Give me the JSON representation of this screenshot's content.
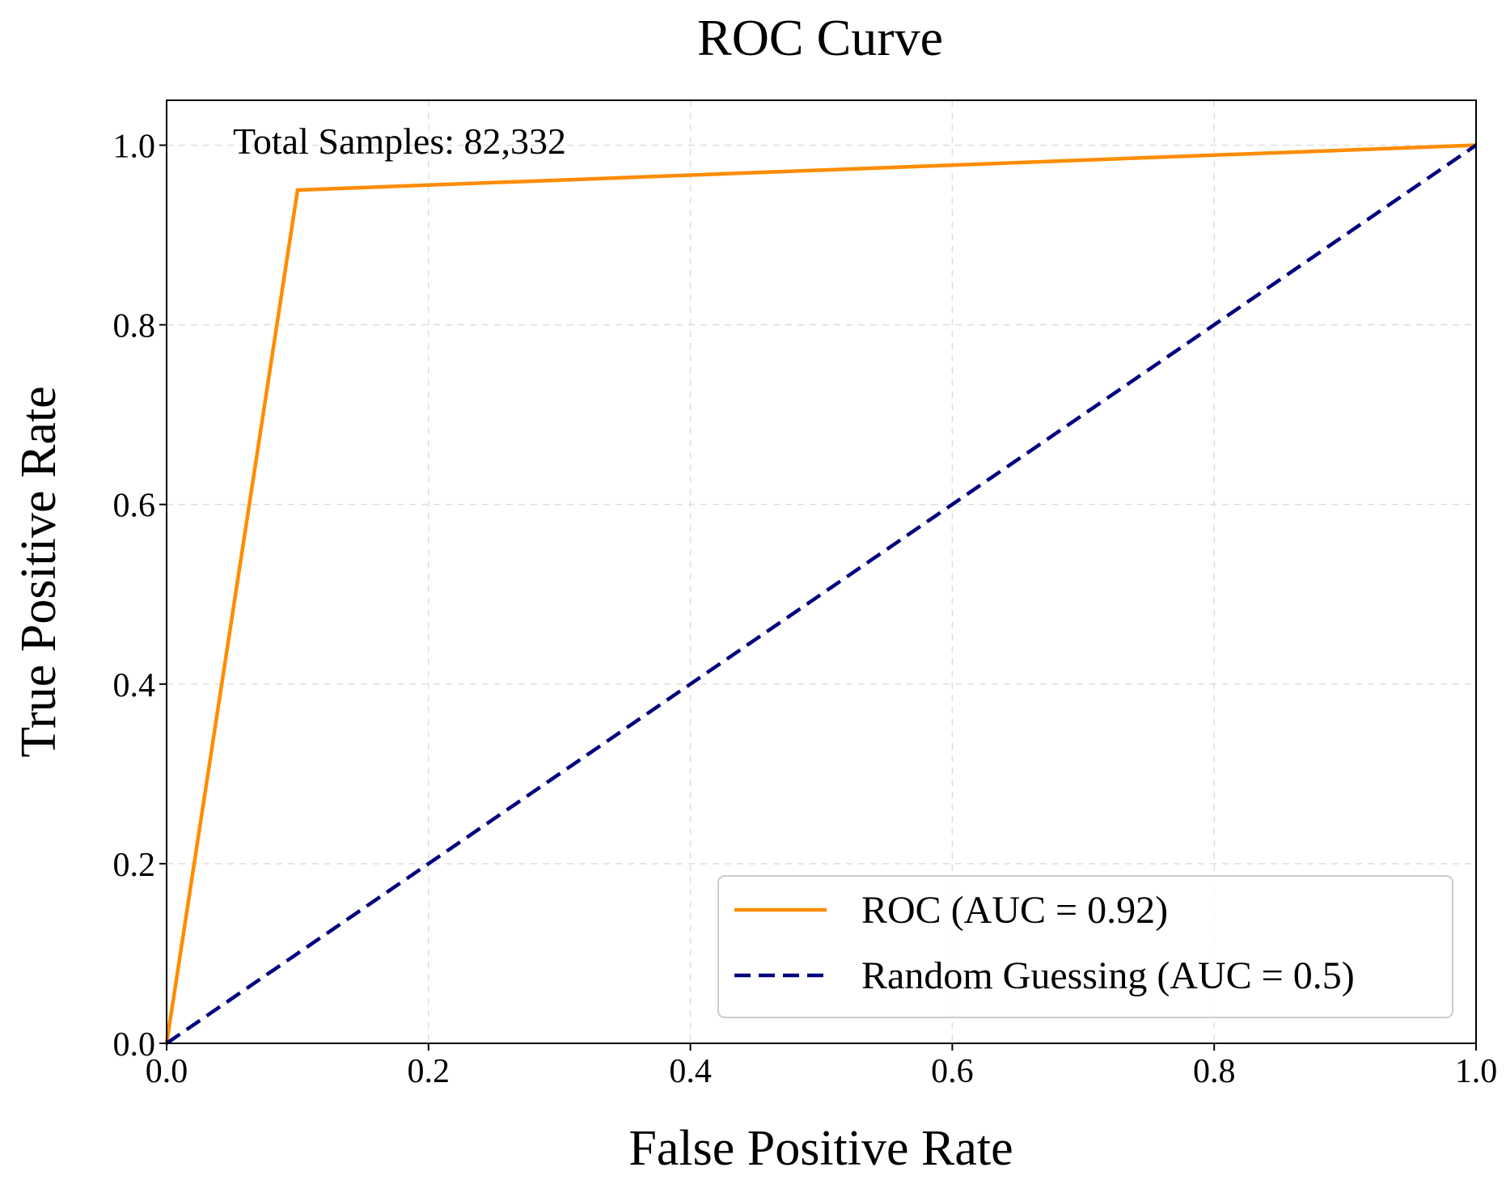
{
  "chart_data": {
    "type": "line",
    "title": "ROC Curve",
    "xlabel": "False Positive Rate",
    "ylabel": "True Positive Rate",
    "xlim": [
      0.0,
      1.0
    ],
    "ylim": [
      0.0,
      1.05
    ],
    "xticks": [
      0.0,
      0.2,
      0.4,
      0.6,
      0.8,
      1.0
    ],
    "xtick_labels": [
      "0.0",
      "0.2",
      "0.4",
      "0.6",
      "0.8",
      "1.0"
    ],
    "yticks": [
      0.0,
      0.2,
      0.4,
      0.6,
      0.8,
      1.0
    ],
    "ytick_labels": [
      "0.0",
      "0.2",
      "0.4",
      "0.6",
      "0.8",
      "1.0"
    ],
    "grid": true,
    "legend_position": "lower-right",
    "annotation": "Total Samples: 82,332",
    "series": [
      {
        "name": "ROC (AUC = 0.92)",
        "color": "#ff8c00",
        "style": "solid",
        "x": [
          0.0,
          0.1,
          1.0
        ],
        "y": [
          0.0,
          0.95,
          1.0
        ]
      },
      {
        "name": "Random Guessing (AUC = 0.5)",
        "color": "#000080",
        "style": "dashed",
        "x": [
          0.0,
          1.0
        ],
        "y": [
          0.0,
          1.0
        ]
      }
    ]
  }
}
